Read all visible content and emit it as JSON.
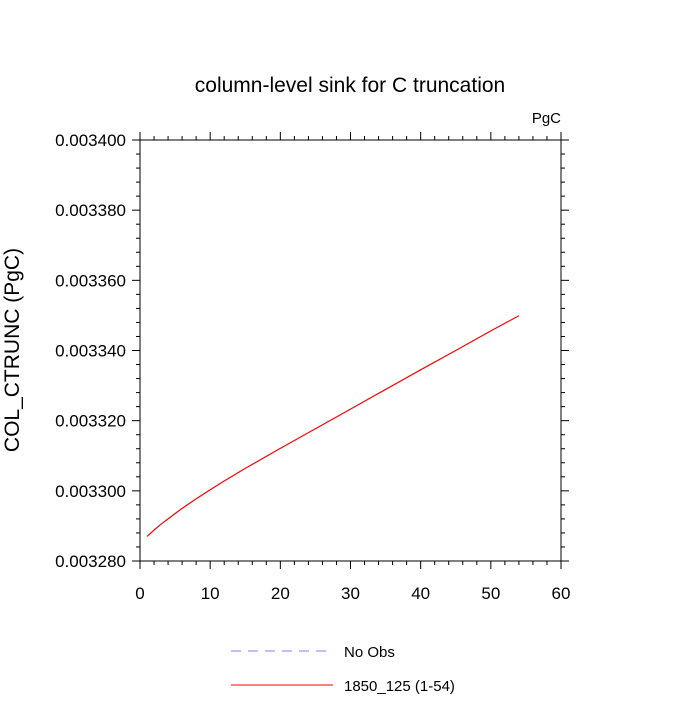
{
  "chart_data": {
    "type": "line",
    "title": "column-level sink for C truncation",
    "units_label": "PgC",
    "ylabel": "COL_CTRUNC  (PgC)",
    "xlabel": "",
    "xlim": [
      0,
      60
    ],
    "ylim": [
      0.00328,
      0.0034
    ],
    "x_ticks": [
      0,
      10,
      20,
      30,
      40,
      50,
      60
    ],
    "x_tick_labels": [
      "0",
      "10",
      "20",
      "30",
      "40",
      "50",
      "60"
    ],
    "y_ticks": [
      0.00328,
      0.0033,
      0.00332,
      0.00334,
      0.00336,
      0.00338,
      0.0034
    ],
    "y_tick_labels": [
      "0.003280",
      "0.003300",
      "0.003320",
      "0.003340",
      "0.003360",
      "0.003380",
      "0.003400"
    ],
    "grid": false,
    "legend_position": "bottom",
    "legend": [
      {
        "label": "No Obs",
        "color": "#8080ff",
        "style": "dashed"
      },
      {
        "label": "1850_125 (1-54)",
        "color": "#ff0000",
        "style": "solid"
      }
    ],
    "series": [
      {
        "name": "1850_125 (1-54)",
        "color": "#ff0000",
        "x": [
          1,
          2,
          3,
          4,
          5,
          6,
          8,
          10,
          12,
          15,
          20,
          25,
          30,
          35,
          40,
          45,
          50,
          54
        ],
        "y": [
          0.003287,
          0.0032888,
          0.0032905,
          0.003292,
          0.0032935,
          0.003295,
          0.0032977,
          0.0033003,
          0.0033028,
          0.0033064,
          0.0033121,
          0.0033177,
          0.0033233,
          0.0033289,
          0.0033345,
          0.00334,
          0.0033456,
          0.0033499
        ]
      }
    ]
  }
}
